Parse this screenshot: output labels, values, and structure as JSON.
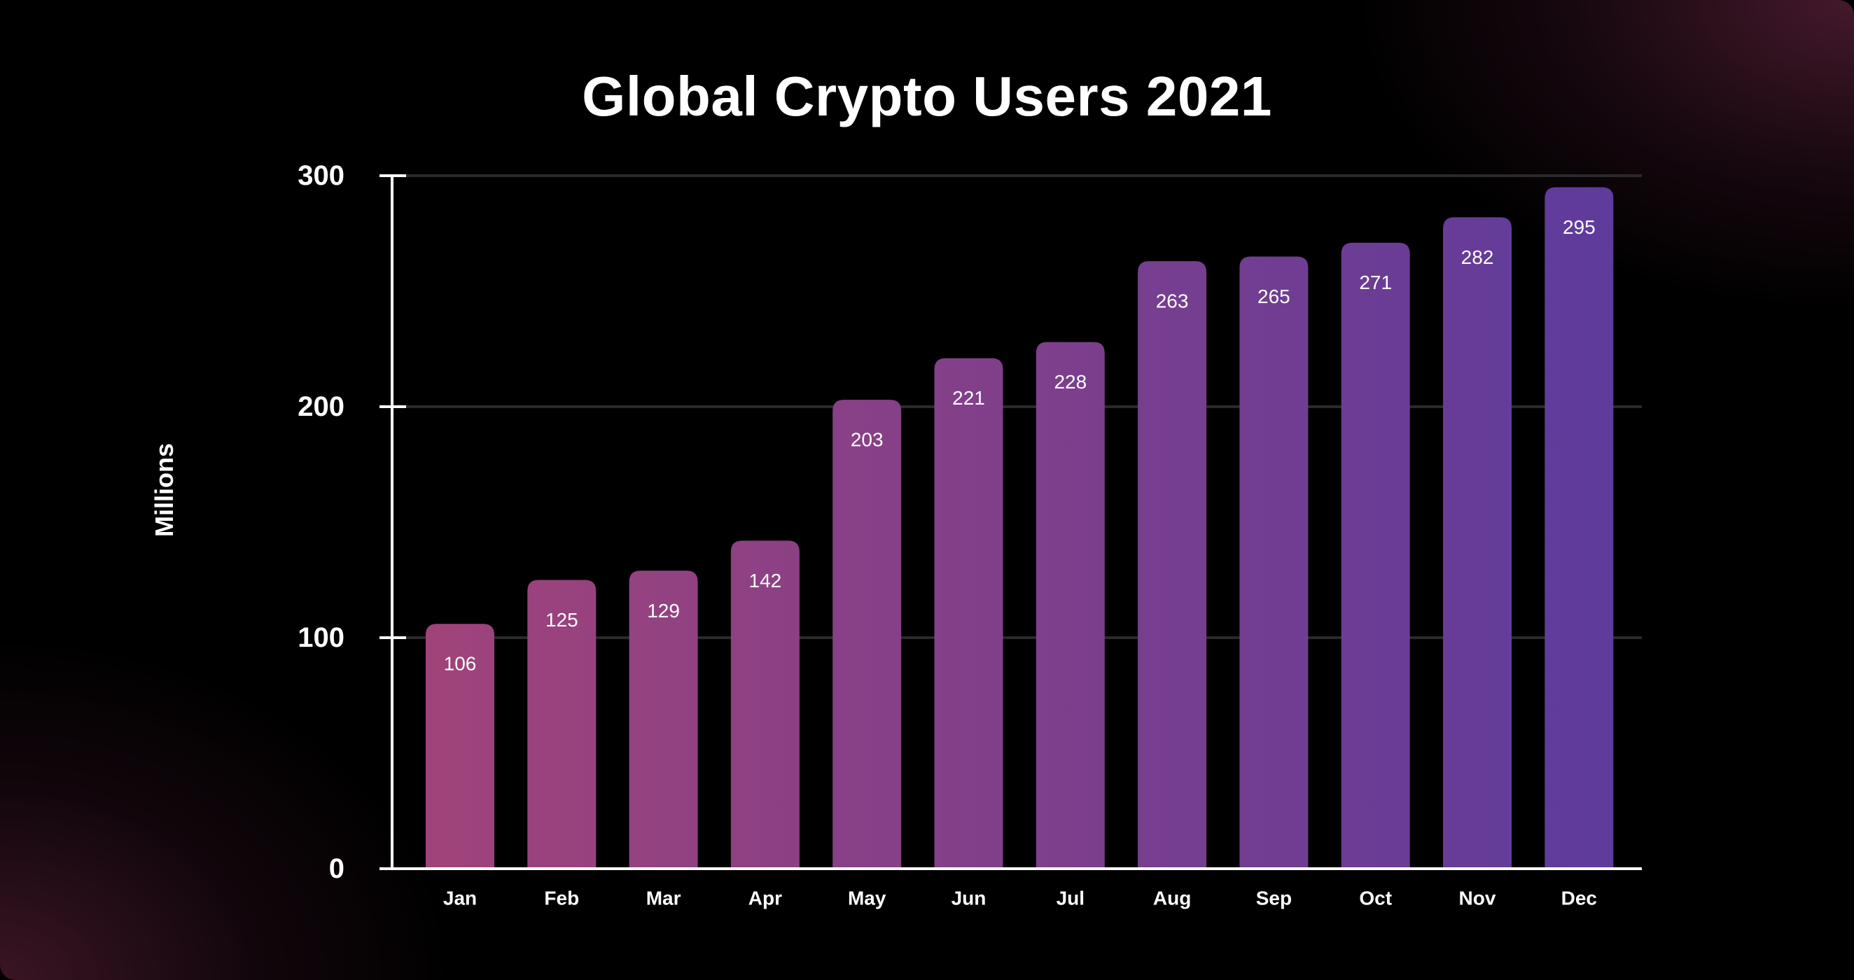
{
  "chart_data": {
    "type": "bar",
    "title": "Global Crypto Users 2021",
    "xlabel": "",
    "ylabel": "Millions",
    "categories": [
      "Jan",
      "Feb",
      "Mar",
      "Apr",
      "May",
      "Jun",
      "Jul",
      "Aug",
      "Sep",
      "Oct",
      "Nov",
      "Dec"
    ],
    "values": [
      106,
      125,
      129,
      142,
      203,
      221,
      228,
      263,
      265,
      271,
      282,
      295
    ],
    "ylim": [
      0,
      300
    ],
    "yticks": [
      "0",
      "100",
      "200",
      "300"
    ],
    "grid": true,
    "legend": "none",
    "data_labels": "inside-top",
    "colors": {
      "bar_start": "#a0437a",
      "bar_end": "#5e3b9c",
      "gridline": "#2a2a2a",
      "axis": "#ffffff",
      "text": "#ffffff"
    }
  }
}
